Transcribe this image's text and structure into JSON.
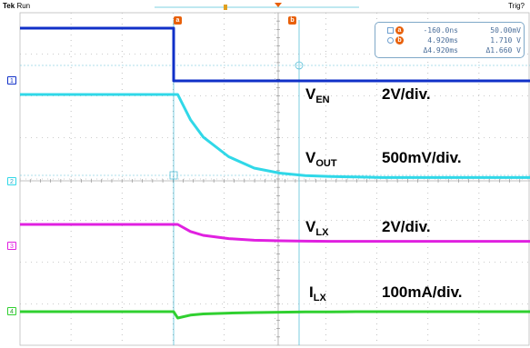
{
  "header": {
    "brand": "Tek",
    "run_state": "Run",
    "trigger_status": "Trig?"
  },
  "cursors": {
    "a_label": "a",
    "b_label": "b"
  },
  "readout": {
    "a_time": "-160.0ns",
    "a_value": "50.00mV",
    "b_time": "4.920ms",
    "b_value": "1.710 V",
    "delta_time": "Δ4.920ms",
    "delta_value": "Δ1.660 V"
  },
  "channels": [
    {
      "number": "1",
      "color": "#1030c8",
      "signal": "V",
      "subscript": "EN",
      "scale": "2V/div."
    },
    {
      "number": "2",
      "color": "#30d8e8",
      "signal": "V",
      "subscript": "OUT",
      "scale": "500mV/div."
    },
    {
      "number": "3",
      "color": "#e020e0",
      "signal": "V",
      "subscript": "LX",
      "scale": "2V/div."
    },
    {
      "number": "4",
      "color": "#30d030",
      "signal": "I",
      "subscript": "LX",
      "scale": "100mA/div."
    }
  ],
  "chart_data": {
    "type": "line",
    "title": "",
    "xlabel": "",
    "ylabel": "",
    "x_unit": "ms",
    "x": [
      -5,
      -2,
      -0.16,
      0,
      0.5,
      1,
      2,
      3,
      4,
      5,
      6,
      7,
      8,
      10
    ],
    "series": [
      {
        "name": "V_EN",
        "values": [
          5.0,
          5.0,
          5.0,
          0.0,
          0.0,
          0.0,
          0.0,
          0.0,
          0.0,
          0.0,
          0.0,
          0.0,
          0.0,
          0.0
        ]
      },
      {
        "name": "V_OUT",
        "values": [
          1.71,
          1.71,
          1.71,
          1.71,
          1.2,
          0.85,
          0.45,
          0.22,
          0.12,
          0.07,
          0.05,
          0.04,
          0.03,
          0.03
        ]
      },
      {
        "name": "V_LX",
        "values": [
          1.75,
          1.75,
          1.75,
          1.75,
          1.1,
          0.75,
          0.45,
          0.3,
          0.25,
          0.22,
          0.2,
          0.2,
          0.2,
          0.2
        ]
      },
      {
        "name": "I_LX",
        "values": [
          0,
          0,
          0,
          -22,
          -12,
          -8,
          -5,
          -3,
          -2,
          -1,
          -1,
          0,
          0,
          0
        ]
      }
    ]
  }
}
